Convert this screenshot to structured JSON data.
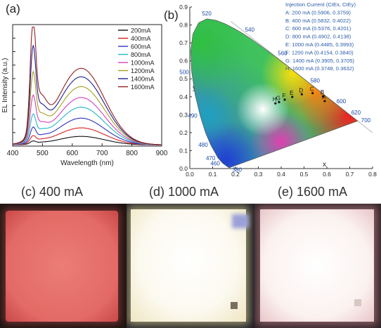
{
  "panels": {
    "a_label": "(a)",
    "b_label": "(b)",
    "c_label": "(c) 400 mA",
    "d_label": "(d) 1000 mA",
    "e_label": "(e) 1600 mA"
  },
  "photos": {
    "c_color": "#e8766f",
    "d_color": "#fbf8ee",
    "e_color": "#fbf2f1"
  },
  "chart_data": [
    {
      "type": "line",
      "title": "",
      "xlabel": "Wavelength (nm)",
      "ylabel": "EL Intensity (a.u.)",
      "xlim": [
        400,
        900
      ],
      "xticks": [
        400,
        500,
        600,
        700,
        800,
        900
      ],
      "legend_position": "top-right",
      "series": [
        {
          "name": "200mA",
          "color": "#111111",
          "blue": 0.02,
          "green": 0.07
        },
        {
          "name": "400mA",
          "color": "#d62020",
          "blue": 0.05,
          "green": 0.14
        },
        {
          "name": "600mA",
          "color": "#3030c0",
          "blue": 0.1,
          "green": 0.22
        },
        {
          "name": "800mA",
          "color": "#20b8c8",
          "blue": 0.18,
          "green": 0.31
        },
        {
          "name": "1000mA",
          "color": "#d040c0",
          "blue": 0.3,
          "green": 0.39
        },
        {
          "name": "1200mA",
          "color": "#a0a020",
          "blue": 0.45,
          "green": 0.48
        },
        {
          "name": "1400mA",
          "color": "#202090",
          "blue": 0.62,
          "green": 0.56
        },
        {
          "name": "1600mA",
          "color": "#902020",
          "blue": 0.8,
          "green": 0.63
        }
      ]
    },
    {
      "type": "scatter",
      "title": "",
      "xlabel": "x",
      "ylabel": "y",
      "xlim": [
        0,
        0.8
      ],
      "ylim": [
        0,
        0.9
      ],
      "xticks": [
        "0.0",
        "0.1",
        "0.2",
        "0.3",
        "0.4",
        "0.5",
        "0.6",
        "0.7",
        "0.8"
      ],
      "yticks": [
        "0.0",
        "0.1",
        "0.2",
        "0.3",
        "0.4",
        "0.5",
        "0.6",
        "0.7",
        "0.8",
        "0.9"
      ],
      "locus_labels": [
        {
          "t": "380",
          "x": 0.1741,
          "y": 0.005
        },
        {
          "t": "460",
          "x": 0.144,
          "y": 0.0297
        },
        {
          "t": "470",
          "x": 0.1241,
          "y": 0.0578
        },
        {
          "t": "480",
          "x": 0.0913,
          "y": 0.1327
        },
        {
          "t": "490",
          "x": 0.0454,
          "y": 0.295
        },
        {
          "t": "500",
          "x": 0.0082,
          "y": 0.5384
        },
        {
          "t": "520",
          "x": 0.0743,
          "y": 0.8338
        },
        {
          "t": "540",
          "x": 0.2296,
          "y": 0.7543
        },
        {
          "t": "560",
          "x": 0.3731,
          "y": 0.6245
        },
        {
          "t": "580",
          "x": 0.5125,
          "y": 0.4866
        },
        {
          "t": "600",
          "x": 0.627,
          "y": 0.3725
        },
        {
          "t": "620",
          "x": 0.6915,
          "y": 0.3083
        },
        {
          "t": "700",
          "x": 0.7347,
          "y": 0.2653
        }
      ],
      "legend_title": "Injection Current (CIEx, CIEy)",
      "points": [
        {
          "label": "A",
          "current": "200 mA",
          "x": 0.5906,
          "y": 0.3759
        },
        {
          "label": "B",
          "current": "400 mA",
          "x": 0.5832,
          "y": 0.4022
        },
        {
          "label": "C",
          "current": "600 mA",
          "x": 0.5376,
          "y": 0.4201
        },
        {
          "label": "D",
          "current": "800 mA",
          "x": 0.4902,
          "y": 0.4138
        },
        {
          "label": "E",
          "current": "1000 mA",
          "x": 0.4485,
          "y": 0.3993
        },
        {
          "label": "F",
          "current": "1200 mA",
          "x": 0.4154,
          "y": 0.384
        },
        {
          "label": "G",
          "current": "1400 mA",
          "x": 0.3905,
          "y": 0.3705
        },
        {
          "label": "H",
          "current": "1600 mA",
          "x": 0.3748,
          "y": 0.3632
        }
      ],
      "legend_lines": [
        "A: 200 mA (0.5906, 0.3759)",
        "B: 400 mA (0.5832, 0.4022)",
        "C: 600 mA (0.5376, 0.4201)",
        "D: 800 mA (0.4902, 0.4138)",
        "E: 1000 mA (0.4485, 0.3993)",
        "F: 1200 mA (0.4154, 0.3840)",
        "G: 1400 mA (0.3905, 0.3705)",
        "H: 1600 mA (0.3748, 0.3632)"
      ]
    }
  ]
}
